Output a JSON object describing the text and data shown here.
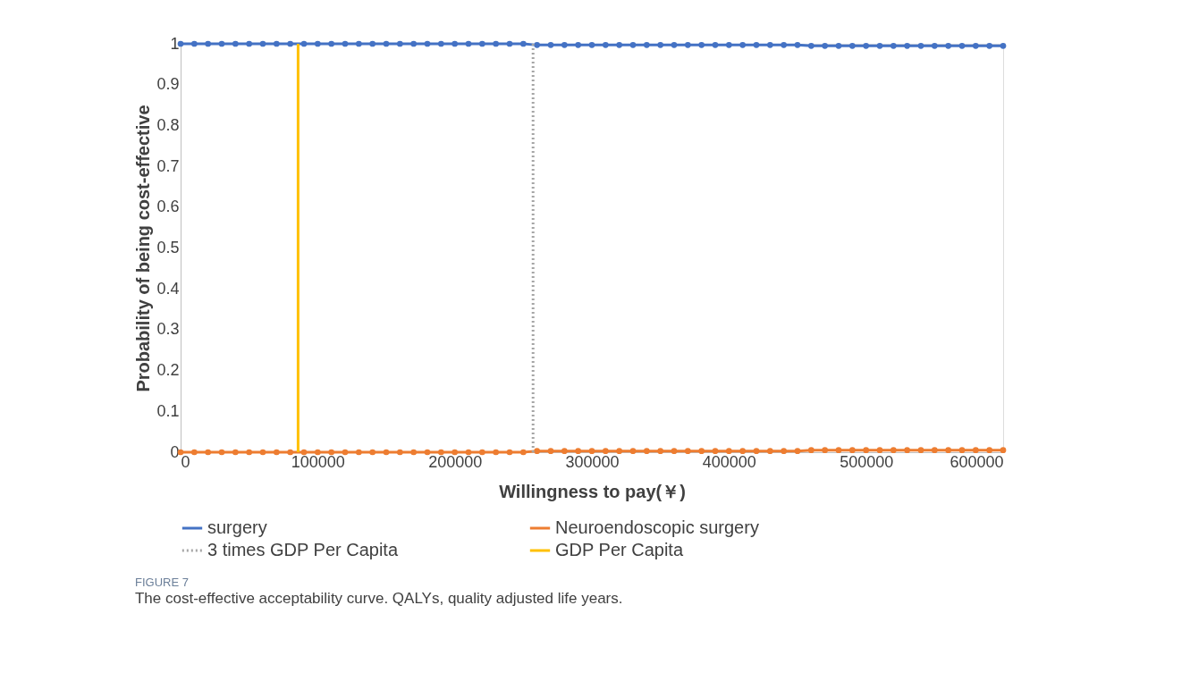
{
  "chart_data": {
    "type": "line",
    "xlabel": "Willingness to pay(￥)",
    "ylabel": "Probability of being cost-effective",
    "x": [
      0,
      10000,
      20000,
      30000,
      40000,
      50000,
      60000,
      70000,
      80000,
      90000,
      100000,
      110000,
      120000,
      130000,
      140000,
      150000,
      160000,
      170000,
      180000,
      190000,
      200000,
      210000,
      220000,
      230000,
      240000,
      250000,
      260000,
      270000,
      280000,
      290000,
      300000,
      310000,
      320000,
      330000,
      340000,
      350000,
      360000,
      370000,
      380000,
      390000,
      400000,
      410000,
      420000,
      430000,
      440000,
      450000,
      460000,
      470000,
      480000,
      490000,
      500000,
      510000,
      520000,
      530000,
      540000,
      550000,
      560000,
      570000,
      580000,
      590000,
      600000
    ],
    "series": [
      {
        "name": "surgery",
        "color": "#4472c4",
        "values": [
          1,
          1,
          1,
          1,
          1,
          1,
          1,
          1,
          1,
          1,
          1,
          1,
          1,
          1,
          1,
          1,
          1,
          1,
          1,
          1,
          1,
          1,
          1,
          1,
          1,
          1,
          0.997,
          0.997,
          0.997,
          0.997,
          0.997,
          0.997,
          0.997,
          0.997,
          0.997,
          0.997,
          0.997,
          0.997,
          0.997,
          0.997,
          0.997,
          0.997,
          0.997,
          0.997,
          0.997,
          0.997,
          0.995,
          0.995,
          0.995,
          0.995,
          0.995,
          0.995,
          0.995,
          0.995,
          0.995,
          0.995,
          0.995,
          0.995,
          0.995,
          0.995,
          0.995
        ]
      },
      {
        "name": "Neuroendoscopic surgery",
        "color": "#ed7d31",
        "values": [
          0,
          0,
          0,
          0,
          0,
          0,
          0,
          0,
          0,
          0,
          0,
          0,
          0,
          0,
          0,
          0,
          0,
          0,
          0,
          0,
          0,
          0,
          0,
          0,
          0,
          0,
          0.003,
          0.003,
          0.003,
          0.003,
          0.003,
          0.003,
          0.003,
          0.003,
          0.003,
          0.003,
          0.003,
          0.003,
          0.003,
          0.003,
          0.003,
          0.003,
          0.003,
          0.003,
          0.003,
          0.003,
          0.005,
          0.005,
          0.005,
          0.005,
          0.005,
          0.005,
          0.005,
          0.005,
          0.005,
          0.005,
          0.005,
          0.005,
          0.005,
          0.005,
          0.005
        ]
      }
    ],
    "ref_lines": [
      {
        "axis": "x",
        "value": 257100,
        "label": "3 times GDP Per Capita",
        "color": "#a5a5a5",
        "line_style": "dotted"
      },
      {
        "axis": "x",
        "value": 85700,
        "label": "GDP Per Capita",
        "color": "#ffc000",
        "line_style": "solid"
      }
    ],
    "xlim": [
      0,
      600000
    ],
    "xticks": [
      0,
      100000,
      200000,
      300000,
      400000,
      500000,
      600000
    ],
    "ylim": [
      0,
      1
    ],
    "yticks": [
      0,
      0.1,
      0.2,
      0.3,
      0.4,
      0.5,
      0.6,
      0.7,
      0.8,
      0.9,
      1
    ],
    "grid": false,
    "legend": "bottom",
    "marker": "circle",
    "line_style": "solid",
    "annotations": [
      "FIGURE 7",
      "The cost-effective acceptability curve. QALYs, quality adjusted life years."
    ]
  }
}
